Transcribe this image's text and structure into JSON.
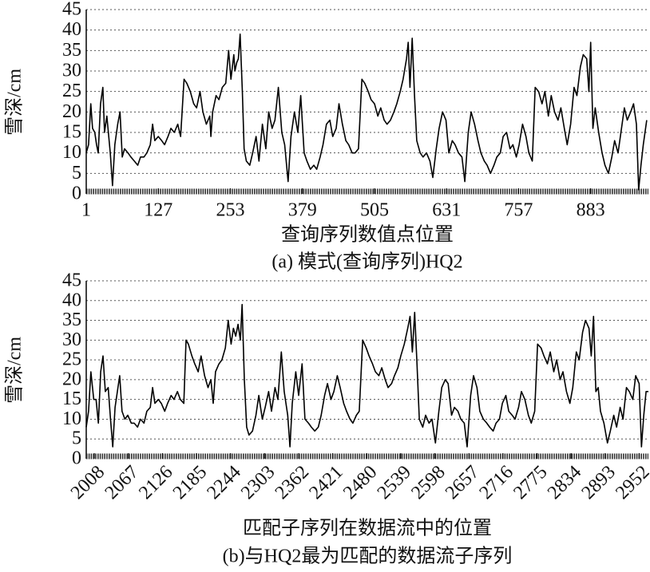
{
  "chart_data": [
    {
      "type": "line",
      "y_label": "雪深/cm",
      "x_label": "查询序列数值点位置",
      "caption": "(a) 模式(查询序列)HQ2",
      "color": "#000000",
      "grid": true,
      "xlim": [
        1,
        984
      ],
      "ylim": [
        0,
        45
      ],
      "yticks": [
        0,
        5,
        10,
        15,
        20,
        25,
        30,
        35,
        40,
        45
      ],
      "xticks": [
        1,
        127,
        253,
        379,
        505,
        631,
        757,
        883
      ],
      "x_tick_rotation": 0,
      "x": [
        1,
        5,
        9,
        12,
        16,
        19,
        22,
        26,
        30,
        33,
        37,
        43,
        47,
        51,
        56,
        60,
        64,
        68,
        74,
        79,
        85,
        91,
        96,
        102,
        107,
        113,
        117,
        121,
        127,
        133,
        138,
        144,
        149,
        155,
        161,
        166,
        172,
        177,
        183,
        189,
        194,
        200,
        205,
        211,
        217,
        219,
        222,
        228,
        233,
        239,
        245,
        250,
        254,
        259,
        261,
        264,
        267,
        270,
        274,
        277,
        281,
        287,
        292,
        298,
        303,
        309,
        315,
        320,
        326,
        331,
        337,
        343,
        348,
        354,
        359,
        365,
        371,
        376,
        382,
        387,
        393,
        399,
        404,
        410,
        415,
        421,
        427,
        432,
        438,
        443,
        449,
        455,
        460,
        466,
        471,
        477,
        483,
        488,
        494,
        499,
        505,
        511,
        516,
        522,
        527,
        533,
        539,
        544,
        550,
        555,
        561,
        564,
        567,
        571,
        575,
        579,
        585,
        590,
        596,
        602,
        607,
        613,
        618,
        624,
        630,
        635,
        641,
        646,
        652,
        658,
        663,
        669,
        674,
        680,
        686,
        691,
        697,
        702,
        708,
        714,
        719,
        725,
        730,
        736,
        742,
        747,
        753,
        758,
        764,
        770,
        775,
        781,
        786,
        792,
        798,
        803,
        809,
        814,
        820,
        826,
        831,
        837,
        842,
        848,
        854,
        859,
        865,
        870,
        876,
        880,
        883,
        887,
        891,
        897,
        903,
        908,
        914,
        920,
        925,
        931,
        936,
        942,
        947,
        953,
        958,
        963,
        967,
        971,
        975,
        981
      ],
      "values": [
        10,
        12,
        22,
        16,
        15,
        12,
        10,
        22,
        26,
        15,
        19,
        10,
        2,
        12,
        17,
        20,
        9,
        11,
        10,
        9,
        8,
        7,
        9,
        9,
        10,
        12,
        17,
        13,
        14,
        13,
        12,
        14,
        16,
        15,
        17,
        14,
        28,
        27,
        25,
        22,
        21,
        25,
        20,
        17,
        19,
        14,
        20,
        24,
        23,
        26,
        27,
        35,
        28,
        34,
        30,
        32,
        33,
        39,
        25,
        11,
        8,
        7,
        10,
        14,
        8,
        17,
        11,
        20,
        16,
        18,
        26,
        15,
        12,
        3,
        14,
        20,
        15,
        24,
        10,
        8,
        6,
        7,
        6,
        9,
        12,
        17,
        18,
        14,
        16,
        22,
        17,
        13,
        12,
        10,
        10,
        11,
        28,
        27,
        25,
        23,
        22,
        19,
        21,
        18,
        17,
        18,
        20,
        22,
        25,
        28,
        33,
        37,
        26,
        38,
        24,
        13,
        10,
        9,
        10,
        8,
        4,
        11,
        16,
        20,
        18,
        10,
        13,
        12,
        10,
        9,
        3,
        15,
        20,
        17,
        13,
        10,
        8,
        7,
        5,
        7,
        9,
        10,
        14,
        15,
        11,
        12,
        9,
        12,
        17,
        14,
        10,
        8,
        26,
        25,
        22,
        25,
        19,
        24,
        20,
        18,
        21,
        16,
        12,
        17,
        26,
        24,
        31,
        34,
        33,
        25,
        37,
        16,
        21,
        15,
        10,
        7,
        5,
        9,
        13,
        10,
        15,
        21,
        18,
        20,
        22,
        17,
        1,
        7,
        12,
        18
      ]
    },
    {
      "type": "line",
      "y_label": "雪深/cm",
      "x_label": "匹配子序列在数据流中的位置",
      "caption": "(b)与HQ2最为匹配的数据流子序列",
      "color": "#000000",
      "grid": true,
      "xlim": [
        1994,
        2968
      ],
      "ylim": [
        0,
        45
      ],
      "yticks": [
        0,
        5,
        10,
        15,
        20,
        25,
        30,
        35,
        40,
        45
      ],
      "xticks": [
        2008,
        2067,
        2126,
        2185,
        2244,
        2303,
        2362,
        2421,
        2480,
        2539,
        2598,
        2657,
        2716,
        2775,
        2834,
        2893,
        2952
      ],
      "x_tick_rotation": -45,
      "x": [
        1994,
        1998,
        2002,
        2007,
        2011,
        2015,
        2019,
        2023,
        2027,
        2032,
        2036,
        2040,
        2044,
        2048,
        2052,
        2056,
        2061,
        2066,
        2072,
        2077,
        2083,
        2088,
        2094,
        2099,
        2105,
        2109,
        2113,
        2119,
        2124,
        2130,
        2135,
        2141,
        2146,
        2152,
        2157,
        2163,
        2167,
        2171,
        2177,
        2182,
        2188,
        2193,
        2199,
        2205,
        2210,
        2214,
        2218,
        2224,
        2229,
        2235,
        2240,
        2245,
        2249,
        2253,
        2257,
        2261,
        2264,
        2268,
        2272,
        2276,
        2282,
        2288,
        2293,
        2299,
        2304,
        2310,
        2315,
        2321,
        2326,
        2332,
        2337,
        2343,
        2347,
        2351,
        2357,
        2362,
        2368,
        2373,
        2379,
        2384,
        2390,
        2396,
        2401,
        2407,
        2412,
        2418,
        2423,
        2429,
        2434,
        2440,
        2445,
        2451,
        2456,
        2462,
        2467,
        2473,
        2479,
        2484,
        2490,
        2495,
        2501,
        2506,
        2512,
        2517,
        2523,
        2528,
        2534,
        2539,
        2545,
        2551,
        2555,
        2559,
        2563,
        2567,
        2571,
        2577,
        2582,
        2588,
        2593,
        2599,
        2605,
        2610,
        2616,
        2621,
        2627,
        2632,
        2638,
        2643,
        2649,
        2654,
        2660,
        2665,
        2671,
        2676,
        2682,
        2688,
        2693,
        2699,
        2704,
        2710,
        2715,
        2721,
        2726,
        2732,
        2737,
        2743,
        2748,
        2754,
        2760,
        2765,
        2771,
        2776,
        2782,
        2787,
        2793,
        2798,
        2804,
        2809,
        2815,
        2820,
        2826,
        2832,
        2837,
        2843,
        2848,
        2854,
        2859,
        2865,
        2869,
        2873,
        2877,
        2881,
        2885,
        2891,
        2897,
        2902,
        2908,
        2913,
        2919,
        2924,
        2930,
        2935,
        2941,
        2946,
        2952,
        2956,
        2960,
        2964,
        2968
      ],
      "values": [
        8,
        12,
        22,
        15,
        15,
        9,
        22,
        26,
        17,
        18,
        10,
        3,
        13,
        17,
        21,
        12,
        10,
        11,
        9,
        9,
        8,
        10,
        9,
        12,
        13,
        18,
        14,
        15,
        14,
        12,
        14,
        16,
        15,
        17,
        15,
        14,
        30,
        29,
        26,
        24,
        22,
        26,
        21,
        18,
        20,
        14,
        22,
        24,
        25,
        28,
        35,
        29,
        33,
        31,
        34,
        30,
        39,
        20,
        8,
        6,
        7,
        11,
        16,
        10,
        13,
        17,
        12,
        18,
        15,
        27,
        17,
        11,
        3,
        14,
        22,
        16,
        24,
        10,
        9,
        8,
        7,
        8,
        11,
        16,
        19,
        15,
        17,
        21,
        18,
        14,
        12,
        10,
        9,
        11,
        12,
        30,
        28,
        26,
        24,
        22,
        21,
        23,
        20,
        18,
        19,
        21,
        23,
        26,
        29,
        33,
        36,
        27,
        37,
        24,
        10,
        8,
        11,
        9,
        10,
        4,
        12,
        18,
        20,
        19,
        11,
        13,
        12,
        10,
        9,
        3,
        16,
        21,
        18,
        12,
        10,
        9,
        8,
        7,
        9,
        10,
        14,
        16,
        12,
        11,
        10,
        13,
        17,
        15,
        11,
        9,
        12,
        29,
        28,
        26,
        24,
        27,
        22,
        25,
        20,
        22,
        17,
        14,
        18,
        27,
        25,
        32,
        35,
        33,
        26,
        36,
        17,
        18,
        12,
        9,
        4,
        7,
        11,
        8,
        13,
        10,
        18,
        17,
        15,
        21,
        19,
        3,
        11,
        17,
        17
      ]
    }
  ]
}
